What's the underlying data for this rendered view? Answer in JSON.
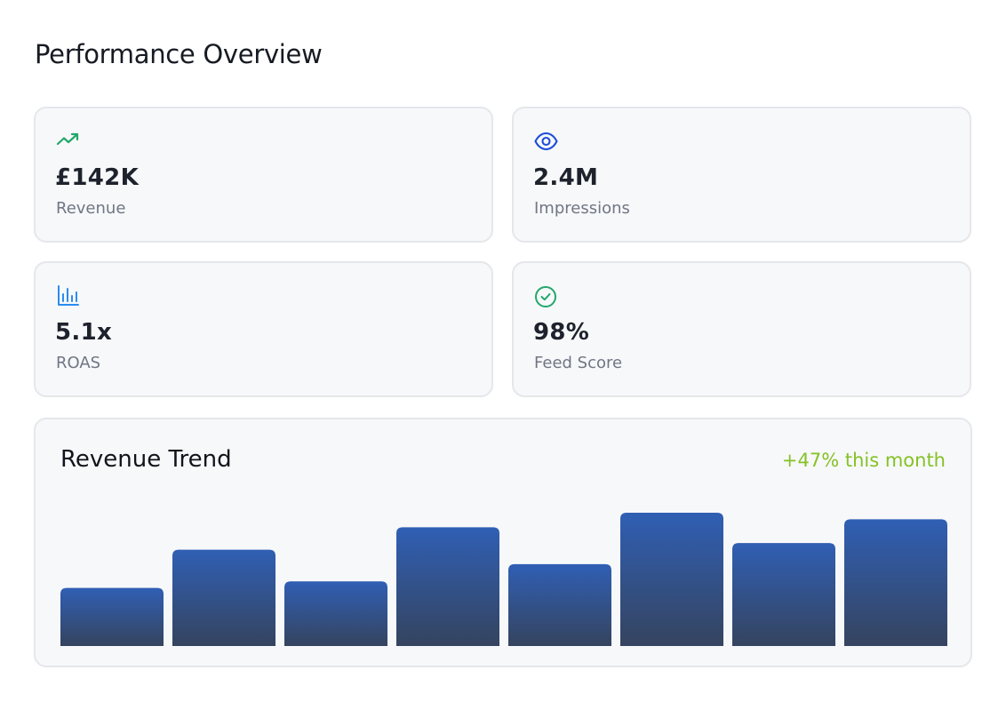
{
  "page": {
    "title": "Performance Overview"
  },
  "stats": [
    {
      "value": "£142K",
      "label": "Revenue",
      "icon": "trending-up-icon",
      "icon_color": "#22a86a"
    },
    {
      "value": "2.4M",
      "label": "Impressions",
      "icon": "eye-icon",
      "icon_color": "#1d4ed8"
    },
    {
      "value": "5.1x",
      "label": "ROAS",
      "icon": "bar-chart-icon",
      "icon_color": "#2b8cf0"
    },
    {
      "value": "98%",
      "label": "Feed Score",
      "icon": "check-circle-icon",
      "icon_color": "#22a86a"
    }
  ],
  "trend": {
    "title": "Revenue Trend",
    "delta": "+47% this month",
    "delta_color": "#84c225"
  },
  "chart_data": {
    "type": "bar",
    "categories": [
      "",
      "",
      "",
      "",
      "",
      "",
      "",
      ""
    ],
    "values": [
      44,
      73,
      49,
      90,
      62,
      101,
      78,
      96
    ],
    "ylim": [
      0,
      101
    ],
    "grid": false,
    "bar_color_top": "#305fb4",
    "bar_color_bottom": "#35445f"
  }
}
